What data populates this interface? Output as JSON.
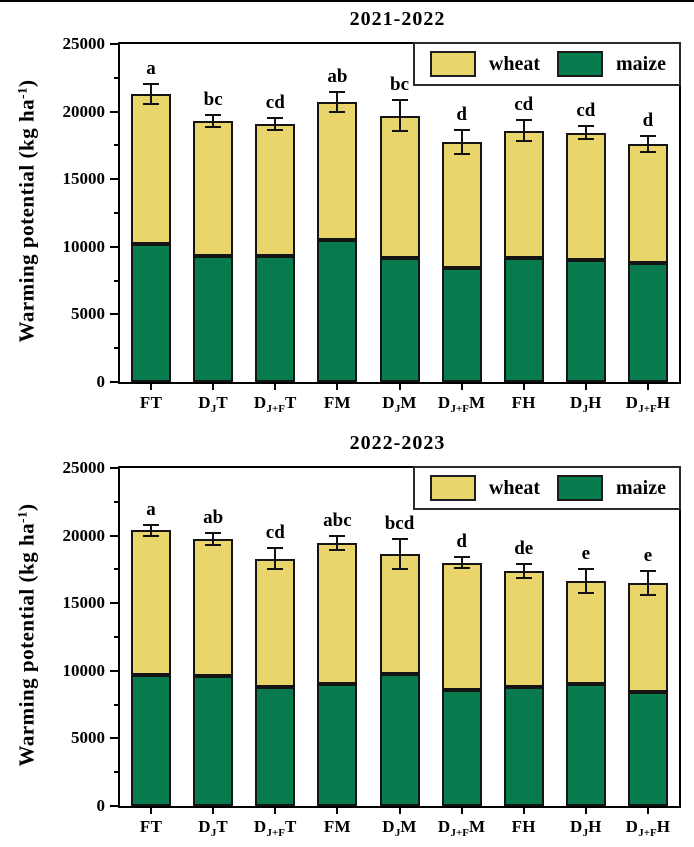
{
  "figure": {
    "ylabel_prefix": "Warming potential (kg ha",
    "ylabel_sup": "-1",
    "ylabel_suffix": ")"
  },
  "colors": {
    "wheat": "#E9D56C",
    "maize": "#077B4E",
    "axis": "#000000",
    "text": "#000000"
  },
  "chart_data": [
    {
      "type": "bar",
      "stacked": true,
      "title": "2021-2022",
      "ylabel": "Warming potential (kg ha⁻¹)",
      "xlabel": "",
      "ylim": [
        0,
        25000
      ],
      "yticks": [
        0,
        5000,
        10000,
        15000,
        20000,
        25000
      ],
      "minor_yticks": [
        2500,
        7500,
        12500,
        17500,
        22500
      ],
      "grid": false,
      "legend_position": "top-right",
      "legend_entries": [
        "wheat",
        "maize"
      ],
      "categories": [
        "FT",
        "D_{J}T",
        "D_{J+F}T",
        "FM",
        "D_{J}M",
        "D_{J+F}M",
        "FH",
        "D_{J}H",
        "D_{J+F}H"
      ],
      "series": [
        {
          "name": "maize",
          "color_key": "maize",
          "values": [
            10200,
            9350,
            9300,
            10500,
            9150,
            8450,
            9200,
            9000,
            8800
          ]
        },
        {
          "name": "wheat",
          "color_key": "wheat",
          "values": [
            11100,
            9950,
            9800,
            10200,
            10550,
            9300,
            9400,
            9450,
            8800
          ]
        }
      ],
      "totals": [
        21300,
        19300,
        19100,
        20700,
        19700,
        17750,
        18600,
        18450,
        17600
      ],
      "error_bars": [
        750,
        450,
        450,
        750,
        1150,
        900,
        800,
        450,
        600
      ],
      "sig_letters": [
        "a",
        "bc",
        "cd",
        "ab",
        "bc",
        "d",
        "cd",
        "cd",
        "d"
      ]
    },
    {
      "type": "bar",
      "stacked": true,
      "title": "2022-2023",
      "ylabel": "Warming potential (kg ha⁻¹)",
      "xlabel": "",
      "ylim": [
        0,
        25000
      ],
      "yticks": [
        0,
        5000,
        10000,
        15000,
        20000,
        25000
      ],
      "minor_yticks": [
        2500,
        7500,
        12500,
        17500,
        22500
      ],
      "grid": false,
      "legend_position": "top-right",
      "legend_entries": [
        "wheat",
        "maize"
      ],
      "categories": [
        "FT",
        "D_{J}T",
        "D_{J+F}T",
        "FM",
        "D_{J}M",
        "D_{J+F}M",
        "FH",
        "D_{J}H",
        "D_{J+F}H"
      ],
      "series": [
        {
          "name": "maize",
          "color_key": "maize",
          "values": [
            9700,
            9600,
            8800,
            9000,
            9750,
            8600,
            8800,
            9000,
            8400
          ]
        },
        {
          "name": "wheat",
          "color_key": "wheat",
          "values": [
            10700,
            10150,
            9500,
            10450,
            8900,
            9400,
            8600,
            7650,
            8100
          ]
        }
      ],
      "totals": [
        20400,
        19750,
        18300,
        19450,
        18650,
        18000,
        17400,
        16650,
        16500
      ],
      "error_bars": [
        400,
        450,
        750,
        500,
        1100,
        400,
        500,
        900,
        900
      ],
      "sig_letters": [
        "a",
        "ab",
        "cd",
        "abc",
        "bcd",
        "d",
        "de",
        "e",
        "e"
      ]
    }
  ]
}
